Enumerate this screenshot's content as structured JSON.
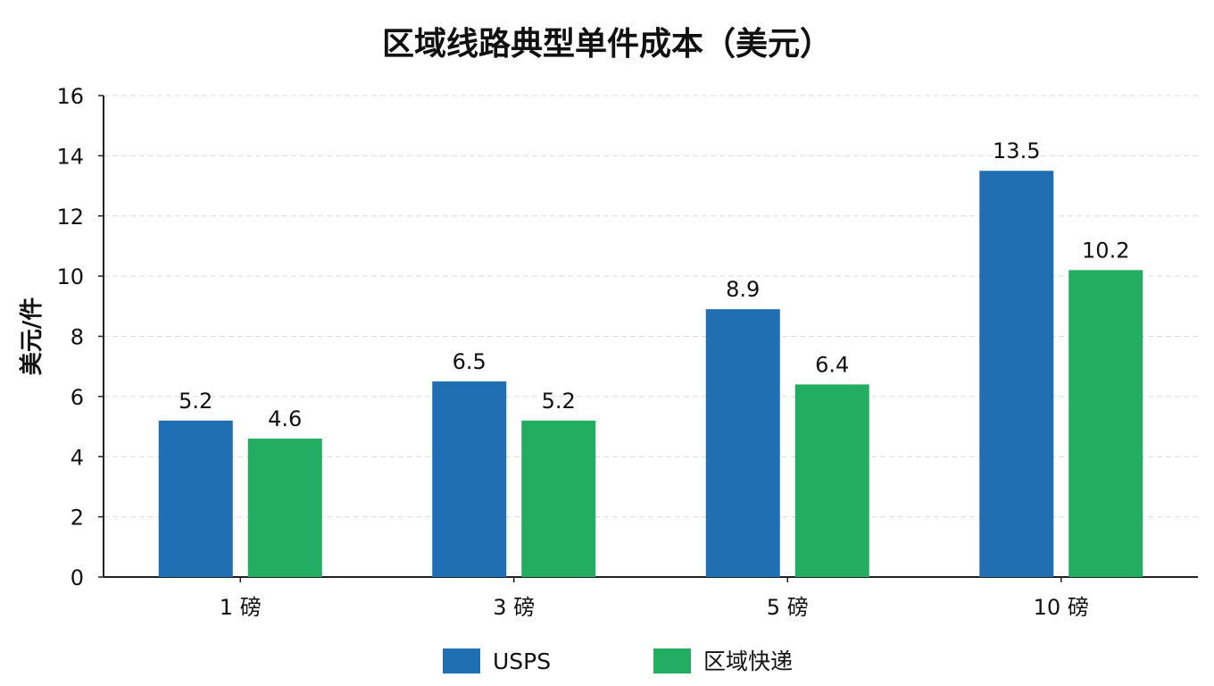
{
  "chart_data": {
    "type": "bar",
    "title": "区域线路典型单件成本（美元）",
    "xlabel": "",
    "ylabel": "美元/件",
    "categories": [
      "1 磅",
      "3 磅",
      "5 磅",
      "10 磅"
    ],
    "series": [
      {
        "name": "USPS",
        "values": [
          5.2,
          6.5,
          8.9,
          13.5
        ],
        "color": "#1f6fb2"
      },
      {
        "name": "区域快递",
        "values": [
          4.6,
          5.2,
          6.4,
          10.2
        ],
        "color": "#22ad63"
      }
    ],
    "ylim": [
      0,
      16
    ],
    "yticks": [
      0,
      2,
      4,
      6,
      8,
      10,
      12,
      14,
      16
    ],
    "grid": true,
    "legend_position": "bottom-center"
  }
}
